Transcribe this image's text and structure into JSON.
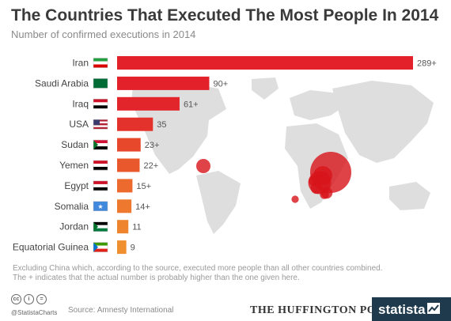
{
  "title": "The Countries That Executed The Most People In 2014",
  "subtitle": "Number of confirmed executions in 2014",
  "chart_data": {
    "type": "bar",
    "orientation": "horizontal",
    "categories": [
      "Iran",
      "Saudi Arabia",
      "Iraq",
      "USA",
      "Sudan",
      "Yemen",
      "Egypt",
      "Somalia",
      "Jordan",
      "Equatorial Guinea"
    ],
    "values": [
      289,
      90,
      61,
      35,
      23,
      22,
      15,
      14,
      11,
      9
    ],
    "value_labels": [
      "289+",
      "90+",
      "61+",
      "35",
      "23+",
      "22+",
      "15+",
      "14+",
      "11",
      "9"
    ],
    "bar_colors": [
      "#e2212a",
      "#e2212a",
      "#e2252a",
      "#e3322b",
      "#e7472b",
      "#e9582c",
      "#ec6a2d",
      "#ee782e",
      "#ef842f",
      "#f08f30"
    ],
    "xlim": [
      0,
      289
    ],
    "grid": false,
    "background": "world map with red circles sized by executions"
  },
  "map_bubbles": [
    {
      "country": "Iran",
      "value": 289
    },
    {
      "country": "Saudi Arabia",
      "value": 90
    },
    {
      "country": "Iraq",
      "value": 61
    },
    {
      "country": "USA",
      "value": 35
    },
    {
      "country": "Sudan",
      "value": 23
    },
    {
      "country": "Yemen",
      "value": 22
    },
    {
      "country": "Egypt",
      "value": 15
    },
    {
      "country": "Somalia",
      "value": 14
    },
    {
      "country": "Jordan",
      "value": 11
    },
    {
      "country": "Equatorial Guinea",
      "value": 9
    }
  ],
  "notes": [
    "Excluding China which, according to the source, executed more people than all other countries combined.",
    "The + indicates that the actual number is probably higher than the one given here."
  ],
  "footer": {
    "handle": "@StatistaCharts",
    "source": "Source: Amnesty International",
    "partner": "THE HUFFINGTON POST",
    "brand": "statista",
    "license_icons": [
      "cc",
      "i",
      "="
    ],
    "brand_color": "#1f3a4d"
  }
}
